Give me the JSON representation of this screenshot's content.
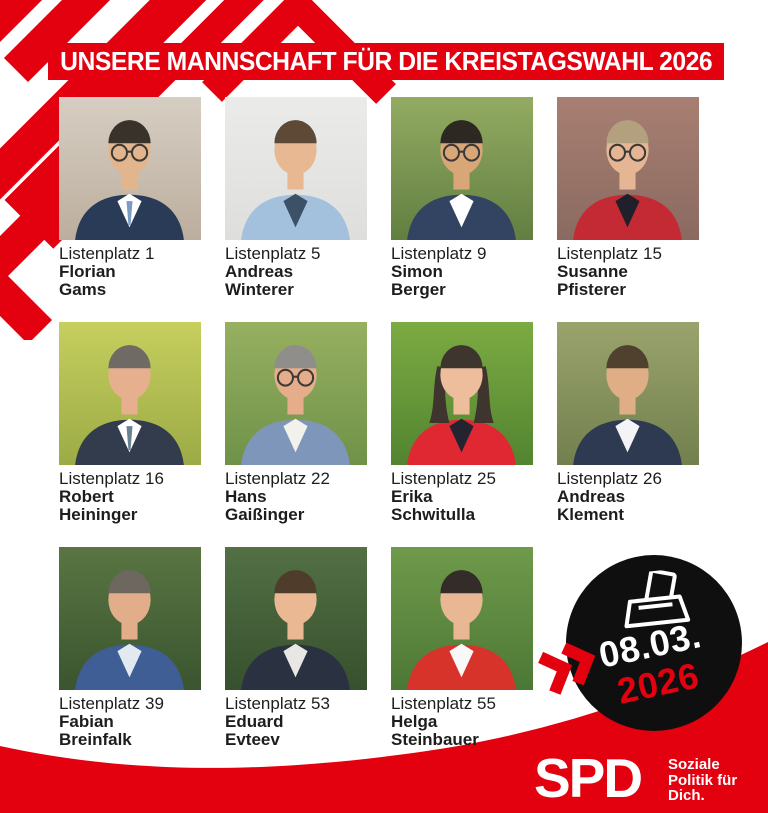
{
  "poster": {
    "banner": {
      "title": "UNSERE MANNSCHAFT FÜR DIE KREISTAGSWAHL 2026",
      "bg_color": "#E3000F",
      "text_color": "#FFFFFF"
    },
    "candidates": [
      {
        "list_label": "Listenplatz 1",
        "first_name": "Florian",
        "last_name": "Gams",
        "photo": {
          "bg_top": "#d6cec2",
          "bg_bottom": "#bcae9e",
          "jacket": "#2a3b58",
          "shirt": "#ffffff",
          "tie": "#7a9cc4",
          "hair": "#38322b",
          "skin": "#e3b58c",
          "glasses": true,
          "hair_style": "short"
        }
      },
      {
        "list_label": "Listenplatz 5",
        "first_name": "Andreas",
        "last_name": "Winterer",
        "photo": {
          "bg_top": "#ebebe9",
          "bg_bottom": "#dededc",
          "jacket": "#a3c0dd",
          "shirt": "#3d5166",
          "hair": "#5d4936",
          "skin": "#e8b892",
          "glasses": false,
          "hair_style": "short"
        }
      },
      {
        "list_label": "Listenplatz 9",
        "first_name": "Simon",
        "last_name": "Berger",
        "photo": {
          "bg_top": "#93ab62",
          "bg_bottom": "#627f41",
          "jacket": "#324461",
          "shirt": "#ffffff",
          "hair": "#2e2822",
          "skin": "#d9a678",
          "glasses": true,
          "hair_style": "short"
        }
      },
      {
        "list_label": "Listenplatz 15",
        "first_name": "Susanne",
        "last_name": "Pfisterer",
        "photo": {
          "bg_top": "#a87f72",
          "bg_bottom": "#8a6a60",
          "jacket": "#c42a34",
          "shirt": "#20202a",
          "hair": "#b3a07e",
          "skin": "#e6b694",
          "glasses": true,
          "hair_style": "short"
        }
      },
      {
        "list_label": "Listenplatz 16",
        "first_name": "Robert",
        "last_name": "Heininger",
        "photo": {
          "bg_top": "#c6cf5e",
          "bg_bottom": "#9cab46",
          "jacket": "#323c4c",
          "shirt": "#ffffff",
          "tie": "#69828f",
          "hair": "#6f6a64",
          "skin": "#e6af8e",
          "glasses": false,
          "hair_style": "short"
        }
      },
      {
        "list_label": "Listenplatz 22",
        "first_name": "Hans",
        "last_name": "Gaißinger",
        "photo": {
          "bg_top": "#97b061",
          "bg_bottom": "#6f9248",
          "jacket": "#7e96ba",
          "shirt": "#f2f1ec",
          "hair": "#8f8e8b",
          "skin": "#e5ad89",
          "glasses": true,
          "hair_style": "short"
        }
      },
      {
        "list_label": "Listenplatz 25",
        "first_name": "Erika",
        "last_name": "Schwitulla",
        "photo": {
          "bg_top": "#7cab42",
          "bg_bottom": "#528431",
          "jacket": "#e02832",
          "shirt": "#242430",
          "hair": "#3e352e",
          "skin": "#eebd9b",
          "glasses": false,
          "hair_style": "long"
        }
      },
      {
        "list_label": "Listenplatz 26",
        "first_name": "Andreas",
        "last_name": "Klement",
        "photo": {
          "bg_top": "#9aa36c",
          "bg_bottom": "#72804e",
          "jacket": "#2d3a52",
          "shirt": "#f4f4f6",
          "hair": "#50412f",
          "skin": "#dfae87",
          "glasses": false,
          "hair_style": "short"
        }
      },
      {
        "list_label": "Listenplatz 39",
        "first_name": "Fabian",
        "last_name": "Breinfalk",
        "photo": {
          "bg_top": "#5a7542",
          "bg_bottom": "#3a552f",
          "jacket": "#3e5e95",
          "shirt": "#e3e9f1",
          "hair": "#6d675f",
          "skin": "#e2ad89",
          "glasses": false,
          "hair_style": "short"
        }
      },
      {
        "list_label": "Listenplatz 53",
        "first_name": "Eduard",
        "last_name": "Evteev",
        "photo": {
          "bg_top": "#527044",
          "bg_bottom": "#37502e",
          "jacket": "#2a3140",
          "shirt": "#e9e7e5",
          "hair": "#503c2a",
          "skin": "#eab994",
          "glasses": false,
          "hair_style": "short"
        }
      },
      {
        "list_label": "Listenplatz 55",
        "first_name": "Helga",
        "last_name": "Steinbauer",
        "photo": {
          "bg_top": "#6f9a4b",
          "bg_bottom": "#4c7836",
          "jacket": "#d8332a",
          "shirt": "#f8f8f8",
          "hair": "#342c28",
          "skin": "#e9b794",
          "glasses": false,
          "hair_style": "short"
        }
      }
    ],
    "badge": {
      "line1": "08.03.",
      "line2": "2026",
      "icon": "ballot-box-icon",
      "bg_color": "#0f0f0f",
      "line1_color": "#FFFFFF",
      "line2_color": "#E3000F"
    },
    "accent_icon": "double-chevron-right-icon",
    "logo": {
      "brand": "SPD",
      "tagline": [
        "Soziale",
        "Politik für",
        "Dich."
      ]
    },
    "colors": {
      "spd_red": "#E3000F",
      "badge_black": "#0f0f0f",
      "text": "#1d1d1b",
      "background": "#FFFFFF"
    }
  }
}
